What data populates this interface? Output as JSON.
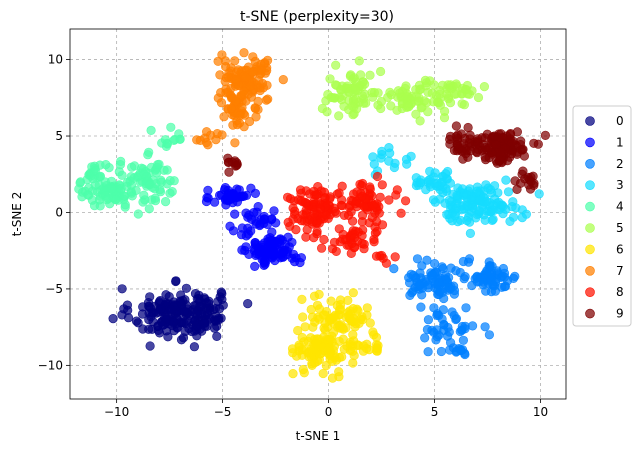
{
  "chart_data": {
    "type": "scatter",
    "title": "t-SNE (perplexity=30)",
    "xlabel": "t-SNE 1",
    "ylabel": "t-SNE 2",
    "xlim": [
      -12.2,
      11.2
    ],
    "ylim": [
      -12.2,
      12.0
    ],
    "xticks": [
      -10,
      -5,
      0,
      5,
      10
    ],
    "yticks": [
      -10,
      -5,
      0,
      5,
      10
    ],
    "grid": true,
    "legend_position": "right",
    "series": [
      {
        "name": "0",
        "color": "#00007f",
        "clusters": [
          {
            "cx": -7.2,
            "cy": -6.6,
            "sx": 1.4,
            "sy": 1.1,
            "n": 170
          },
          {
            "cx": -5.6,
            "cy": -6.4,
            "sx": 0.5,
            "sy": 0.9,
            "n": 25
          }
        ]
      },
      {
        "name": "1",
        "color": "#0000fe",
        "clusters": [
          {
            "cx": -2.6,
            "cy": -2.5,
            "sx": 0.8,
            "sy": 0.6,
            "n": 90
          },
          {
            "cx": -4.6,
            "cy": 1.1,
            "sx": 0.6,
            "sy": 0.6,
            "n": 40
          },
          {
            "cx": -3.4,
            "cy": -0.6,
            "sx": 0.9,
            "sy": 0.7,
            "n": 30
          }
        ]
      },
      {
        "name": "2",
        "color": "#0080ff",
        "clusters": [
          {
            "cx": 5.0,
            "cy": -4.5,
            "sx": 1.0,
            "sy": 0.7,
            "n": 70
          },
          {
            "cx": 7.6,
            "cy": -4.2,
            "sx": 0.9,
            "sy": 0.7,
            "n": 60
          },
          {
            "cx": 5.6,
            "cy": -7.4,
            "sx": 0.9,
            "sy": 0.9,
            "n": 40
          },
          {
            "cx": 6.0,
            "cy": -9.1,
            "sx": 0.6,
            "sy": 0.2,
            "n": 12
          }
        ]
      },
      {
        "name": "3",
        "color": "#16dcff",
        "clusters": [
          {
            "cx": 6.9,
            "cy": 0.6,
            "sx": 1.4,
            "sy": 0.8,
            "n": 130
          },
          {
            "cx": 5.0,
            "cy": 2.1,
            "sx": 0.7,
            "sy": 0.5,
            "n": 30
          },
          {
            "cx": 2.9,
            "cy": 3.4,
            "sx": 0.6,
            "sy": 0.5,
            "n": 15
          }
        ]
      },
      {
        "name": "4",
        "color": "#4dffaa",
        "clusters": [
          {
            "cx": -10.4,
            "cy": 1.8,
            "sx": 0.9,
            "sy": 1.0,
            "n": 90
          },
          {
            "cx": -8.4,
            "cy": 2.0,
            "sx": 0.8,
            "sy": 1.0,
            "n": 60
          },
          {
            "cx": -7.6,
            "cy": 4.6,
            "sx": 0.5,
            "sy": 0.9,
            "n": 12
          }
        ]
      },
      {
        "name": "5",
        "color": "#aaff4d",
        "clusters": [
          {
            "cx": 1.2,
            "cy": 7.8,
            "sx": 0.9,
            "sy": 1.0,
            "n": 70
          },
          {
            "cx": 4.0,
            "cy": 7.4,
            "sx": 1.1,
            "sy": 0.7,
            "n": 70
          },
          {
            "cx": 6.0,
            "cy": 7.9,
            "sx": 0.7,
            "sy": 0.5,
            "n": 25
          }
        ]
      },
      {
        "name": "6",
        "color": "#ffe500",
        "clusters": [
          {
            "cx": -0.2,
            "cy": -9.0,
            "sx": 0.9,
            "sy": 0.9,
            "n": 95
          },
          {
            "cx": 0.4,
            "cy": -6.7,
            "sx": 1.0,
            "sy": 0.8,
            "n": 70
          },
          {
            "cx": 2.2,
            "cy": -8.6,
            "sx": 0.7,
            "sy": 0.4,
            "n": 18
          }
        ]
      },
      {
        "name": "7",
        "color": "#ff7f00",
        "clusters": [
          {
            "cx": -3.9,
            "cy": 8.7,
            "sx": 0.9,
            "sy": 1.0,
            "n": 100
          },
          {
            "cx": -4.2,
            "cy": 6.6,
            "sx": 0.6,
            "sy": 0.9,
            "n": 45
          },
          {
            "cx": -5.7,
            "cy": 4.9,
            "sx": 0.5,
            "sy": 0.4,
            "n": 10
          }
        ]
      },
      {
        "name": "8",
        "color": "#fe1200",
        "clusters": [
          {
            "cx": -0.6,
            "cy": 0.3,
            "sx": 0.9,
            "sy": 0.9,
            "n": 90
          },
          {
            "cx": 1.8,
            "cy": 0.5,
            "sx": 0.8,
            "sy": 0.9,
            "n": 70
          },
          {
            "cx": 0.9,
            "cy": -1.9,
            "sx": 1.0,
            "sy": 0.6,
            "n": 35
          },
          {
            "cx": 2.4,
            "cy": -3.0,
            "sx": 0.4,
            "sy": 0.3,
            "n": 6
          }
        ]
      },
      {
        "name": "9",
        "color": "#7f0000",
        "clusters": [
          {
            "cx": 8.1,
            "cy": 4.3,
            "sx": 0.9,
            "sy": 0.7,
            "n": 110
          },
          {
            "cx": 6.3,
            "cy": 4.5,
            "sx": 0.6,
            "sy": 0.6,
            "n": 30
          },
          {
            "cx": 9.3,
            "cy": 2.0,
            "sx": 0.4,
            "sy": 0.5,
            "n": 15
          },
          {
            "cx": -4.6,
            "cy": 3.3,
            "sx": 0.4,
            "sy": 0.4,
            "n": 10
          }
        ]
      }
    ]
  }
}
